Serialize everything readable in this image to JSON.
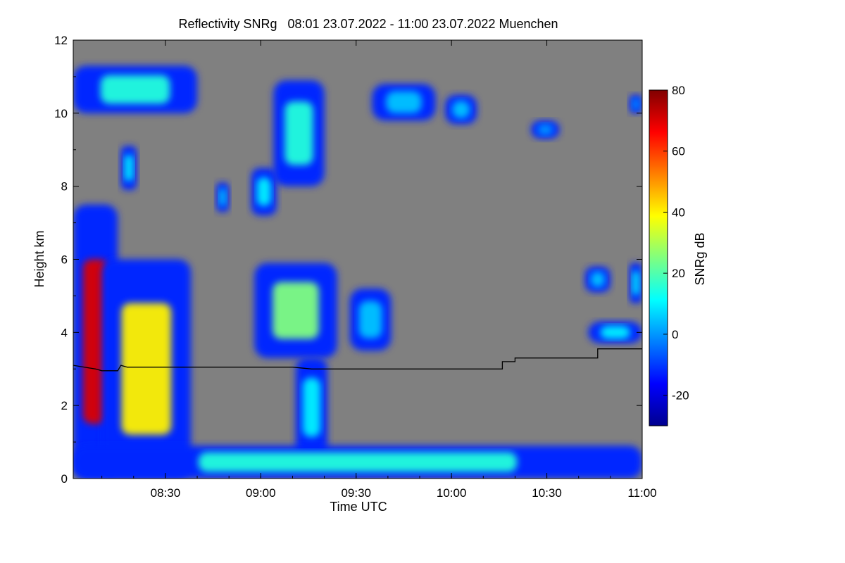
{
  "chart_data": {
    "type": "heatmap",
    "title": "Reflectivity SNRg   08:01 23.07.2022 - 11:00 23.07.2022 Muenchen",
    "xlabel": "Time UTC",
    "ylabel": "Height km",
    "x_range": [
      "08:01",
      "11:00"
    ],
    "x_ticks": [
      "08:30",
      "09:00",
      "09:30",
      "10:00",
      "10:30",
      "11:00"
    ],
    "ylim": [
      0,
      12
    ],
    "y_ticks": [
      0,
      2,
      4,
      6,
      8,
      10,
      12
    ],
    "background_color": "#808080",
    "colorbar": {
      "label": "SNRg dB",
      "range": [
        -30,
        80
      ],
      "ticks": [
        -20,
        0,
        20,
        40,
        60,
        80
      ],
      "colormap": "jet",
      "colors": [
        "#00008f",
        "#0000ff",
        "#00ffff",
        "#ffff00",
        "#ff0000",
        "#800000"
      ]
    },
    "echo_regions": [
      {
        "t_start": "08:01",
        "t_end": "08:15",
        "h_bottom": 0.0,
        "h_top": 7.5,
        "peak_dB": 70
      },
      {
        "t_start": "08:10",
        "t_end": "08:38",
        "h_bottom": 0.0,
        "h_top": 6.0,
        "peak_dB": 40
      },
      {
        "t_start": "08:01",
        "t_end": "08:40",
        "h_bottom": 10.0,
        "h_top": 11.3,
        "peak_dB": 15
      },
      {
        "t_start": "08:16",
        "t_end": "08:21",
        "h_bottom": 7.9,
        "h_top": 9.1,
        "peak_dB": 10
      },
      {
        "t_start": "08:46",
        "t_end": "08:50",
        "h_bottom": 7.3,
        "h_top": 8.1,
        "peak_dB": 5
      },
      {
        "t_start": "08:57",
        "t_end": "09:05",
        "h_bottom": 7.2,
        "h_top": 8.5,
        "peak_dB": 10
      },
      {
        "t_start": "08:58",
        "t_end": "09:24",
        "h_bottom": 3.3,
        "h_top": 5.9,
        "peak_dB": 25
      },
      {
        "t_start": "09:11",
        "t_end": "09:21",
        "h_bottom": 0.6,
        "h_top": 3.3,
        "peak_dB": 10
      },
      {
        "t_start": "09:04",
        "t_end": "09:20",
        "h_bottom": 8.0,
        "h_top": 10.9,
        "peak_dB": 15
      },
      {
        "t_start": "09:28",
        "t_end": "09:41",
        "h_bottom": 3.5,
        "h_top": 5.2,
        "peak_dB": 5
      },
      {
        "t_start": "09:35",
        "t_end": "09:55",
        "h_bottom": 9.8,
        "h_top": 10.8,
        "peak_dB": 5
      },
      {
        "t_start": "09:58",
        "t_end": "10:08",
        "h_bottom": 9.7,
        "h_top": 10.5,
        "peak_dB": 5
      },
      {
        "t_start": "10:25",
        "t_end": "10:34",
        "h_bottom": 9.3,
        "h_top": 9.8,
        "peak_dB": 0
      },
      {
        "t_start": "10:42",
        "t_end": "10:50",
        "h_bottom": 5.1,
        "h_top": 5.8,
        "peak_dB": 5
      },
      {
        "t_start": "10:43",
        "t_end": "11:00",
        "h_bottom": 3.7,
        "h_top": 4.3,
        "peak_dB": 10
      },
      {
        "t_start": "10:56",
        "t_end": "11:00",
        "h_bottom": 4.8,
        "h_top": 5.9,
        "peak_dB": 10
      },
      {
        "t_start": "10:56",
        "t_end": "11:00",
        "h_bottom": 10.0,
        "h_top": 10.5,
        "peak_dB": 0
      },
      {
        "t_start": "08:01",
        "t_end": "11:00",
        "h_bottom": 0.0,
        "h_top": 0.9,
        "peak_dB": 15
      }
    ],
    "overlay_line": {
      "color": "#000000",
      "points": [
        {
          "t": "08:01",
          "h": 3.1
        },
        {
          "t": "08:08",
          "h": 3.0
        },
        {
          "t": "08:10",
          "h": 2.95
        },
        {
          "t": "08:15",
          "h": 2.95
        },
        {
          "t": "08:16",
          "h": 3.1
        },
        {
          "t": "08:18",
          "h": 3.05
        },
        {
          "t": "09:10",
          "h": 3.05
        },
        {
          "t": "09:16",
          "h": 3.0
        },
        {
          "t": "10:16",
          "h": 3.0
        },
        {
          "t": "10:16",
          "h": 3.2
        },
        {
          "t": "10:20",
          "h": 3.2
        },
        {
          "t": "10:20",
          "h": 3.3
        },
        {
          "t": "10:46",
          "h": 3.3
        },
        {
          "t": "10:46",
          "h": 3.55
        },
        {
          "t": "11:00",
          "h": 3.55
        }
      ]
    }
  }
}
